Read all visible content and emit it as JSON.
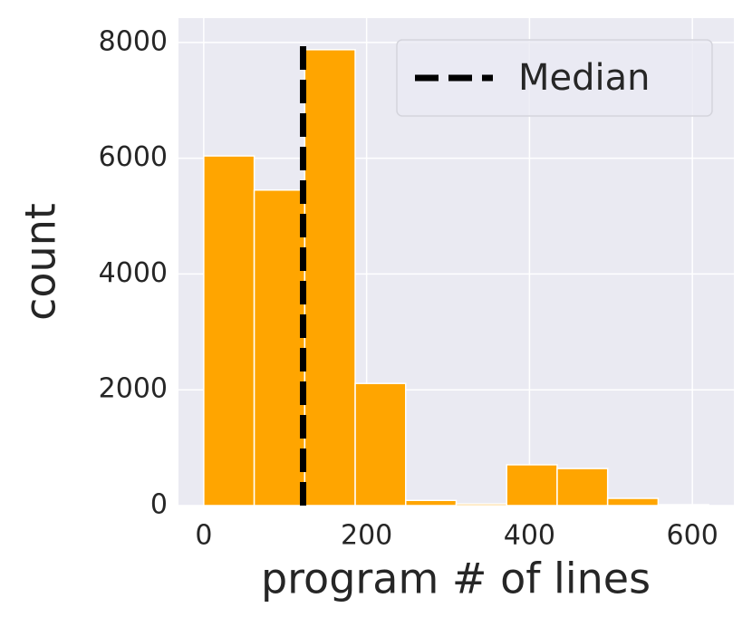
{
  "chart_data": {
    "type": "histogram",
    "xlabel": "program # of lines",
    "ylabel": "count",
    "bins": [
      0,
      62,
      124,
      186,
      248,
      310,
      372,
      434,
      496,
      558,
      620
    ],
    "counts": [
      6040,
      5450,
      7875,
      2110,
      90,
      30,
      705,
      640,
      125,
      15
    ],
    "color": "#ffa500",
    "xlim": [
      -31,
      651
    ],
    "ylim": [
      0,
      8420
    ],
    "xticks": [
      0,
      200,
      400,
      600
    ],
    "yticks": [
      0,
      2000,
      4000,
      6000,
      8000
    ],
    "grid": true,
    "median_line": {
      "x": 122,
      "ymin": 0,
      "ymax": 8000,
      "label": "Median",
      "color": "#000000"
    },
    "legend": "upper right"
  }
}
